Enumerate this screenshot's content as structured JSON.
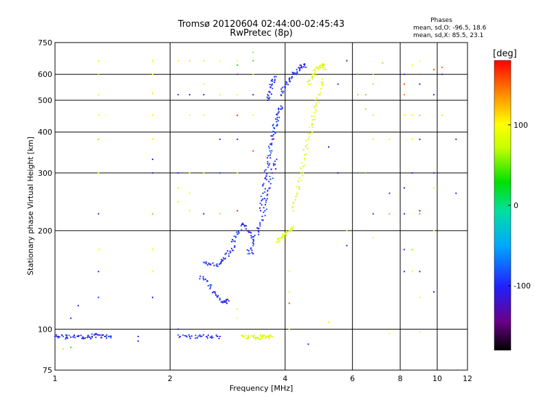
{
  "chart_data": {
    "type": "scatter",
    "title": "Tromsø 20120604 02:44:00-02:45:43",
    "subtitle": "RwPretec (8p)",
    "xlabel": "Frequency [MHz]",
    "ylabel": "Stationary phase Virtual Height [km]",
    "xscale": "log",
    "yscale": "log",
    "xlim": [
      1,
      12
    ],
    "ylim": [
      75,
      750
    ],
    "xticks": [
      1,
      2,
      4,
      6,
      8,
      10,
      12
    ],
    "yticks": [
      75,
      100,
      200,
      300,
      400,
      500,
      600,
      750
    ],
    "grid": true,
    "phases_box": {
      "title": "Phases",
      "line1": "mean, sd,O: -96.5, 18.6",
      "line2": "mean, sd,X:  85.5, 23.1"
    },
    "colorbar": {
      "label": "[deg]",
      "range": [
        -180,
        180
      ],
      "ticks": [
        100,
        0,
        -100
      ]
    },
    "series": [
      {
        "name": "O",
        "color_phase_deg": -96.5,
        "traces": [
          {
            "x": [
              1.0,
              1.05,
              1.1,
              1.15,
              1.2,
              1.25,
              1.3,
              1.35,
              1.4
            ],
            "y": [
              95,
              95,
              94.5,
              95,
              94,
              95,
              96,
              95,
              95
            ]
          },
          {
            "x": [
              2.1,
              2.25,
              2.4,
              2.55,
              2.7
            ],
            "y": [
              96,
              95,
              95,
              94.5,
              95
            ]
          },
          {
            "x": [
              2.4,
              2.5,
              2.6,
              2.7,
              2.78,
              2.85
            ],
            "y": [
              145,
              140,
              130,
              123,
              121,
              122
            ]
          },
          {
            "x": [
              2.45,
              2.55,
              2.65,
              2.75,
              2.85,
              2.95
            ],
            "y": [
              160,
              158,
              156,
              162,
              170,
              178
            ]
          },
          {
            "x": [
              2.9,
              3.0,
              3.1,
              3.2,
              3.3
            ],
            "y": [
              185,
              195,
              210,
              200,
              188
            ]
          },
          {
            "x": [
              3.2,
              3.3,
              3.4,
              3.5,
              3.55,
              3.6,
              3.7,
              3.8
            ],
            "y": [
              170,
              180,
              200,
              215,
              240,
              265,
              300,
              330
            ]
          },
          {
            "x": [
              3.45,
              3.5,
              3.55,
              3.6,
              3.65,
              3.7,
              3.75,
              3.8,
              3.85,
              3.9
            ],
            "y": [
              230,
              260,
              290,
              320,
              350,
              380,
              410,
              430,
              460,
              480
            ]
          },
          {
            "x": [
              3.6,
              3.65,
              3.7,
              3.75
            ],
            "y": [
              500,
              530,
              560,
              590
            ]
          },
          {
            "x": [
              3.9,
              4.0,
              4.1,
              4.2,
              4.3,
              4.4,
              4.5
            ],
            "y": [
              520,
              550,
              580,
              600,
              610,
              630,
              640
            ]
          }
        ]
      },
      {
        "name": "X",
        "color_phase_deg": 85.5,
        "traces": [
          {
            "x": [
              3.1,
              3.2,
              3.3,
              3.4,
              3.5,
              3.6,
              3.7
            ],
            "y": [
              95,
              94.5,
              95,
              94,
              95,
              94.5,
              95
            ]
          },
          {
            "x": [
              3.8,
              3.9,
              4.0,
              4.1,
              4.2
            ],
            "y": [
              185,
              190,
              195,
              200,
              205
            ]
          },
          {
            "x": [
              4.2,
              4.3,
              4.4,
              4.5,
              4.6,
              4.7,
              4.8,
              4.9,
              5.0
            ],
            "y": [
              230,
              260,
              300,
              340,
              380,
              420,
              470,
              520,
              580
            ]
          },
          {
            "x": [
              4.6,
              4.7,
              4.8,
              4.9,
              5.0,
              5.1
            ],
            "y": [
              560,
              590,
              610,
              630,
              640,
              620
            ]
          }
        ]
      }
    ],
    "noise_points": [
      {
        "x": 1.3,
        "y": 660,
        "c": 90
      },
      {
        "x": 1.3,
        "y": 600,
        "c": 120
      },
      {
        "x": 1.3,
        "y": 520,
        "c": 95
      },
      {
        "x": 1.3,
        "y": 450,
        "c": 100
      },
      {
        "x": 1.3,
        "y": 380,
        "c": 60
      },
      {
        "x": 1.3,
        "y": 300,
        "c": 100
      },
      {
        "x": 1.3,
        "y": 225,
        "c": -110
      },
      {
        "x": 1.3,
        "y": 175,
        "c": 95
      },
      {
        "x": 1.3,
        "y": 150,
        "c": -100
      },
      {
        "x": 1.3,
        "y": 125,
        "c": -95
      },
      {
        "x": 1.15,
        "y": 118,
        "c": -110
      },
      {
        "x": 1.1,
        "y": 108,
        "c": -120
      },
      {
        "x": 1.1,
        "y": 88,
        "c": 40
      },
      {
        "x": 1.05,
        "y": 87,
        "c": 70
      },
      {
        "x": 1.8,
        "y": 660,
        "c": 95
      },
      {
        "x": 1.8,
        "y": 600,
        "c": 100
      },
      {
        "x": 1.8,
        "y": 525,
        "c": 110
      },
      {
        "x": 1.8,
        "y": 450,
        "c": 100
      },
      {
        "x": 1.8,
        "y": 380,
        "c": 90
      },
      {
        "x": 1.8,
        "y": 330,
        "c": -110
      },
      {
        "x": 1.8,
        "y": 300,
        "c": -120
      },
      {
        "x": 1.8,
        "y": 225,
        "c": 50
      },
      {
        "x": 1.8,
        "y": 175,
        "c": 95
      },
      {
        "x": 1.8,
        "y": 150,
        "c": 100
      },
      {
        "x": 1.8,
        "y": 125,
        "c": -100
      },
      {
        "x": 1.65,
        "y": 95,
        "c": -100
      },
      {
        "x": 1.65,
        "y": 92,
        "c": -110
      },
      {
        "x": 2.1,
        "y": 660,
        "c": 95
      },
      {
        "x": 2.1,
        "y": 520,
        "c": -90
      },
      {
        "x": 2.1,
        "y": 300,
        "c": -100
      },
      {
        "x": 2.1,
        "y": 270,
        "c": 90
      },
      {
        "x": 2.1,
        "y": 245,
        "c": 80
      },
      {
        "x": 2.1,
        "y": 100,
        "c": -100
      },
      {
        "x": 2.25,
        "y": 660,
        "c": 110
      },
      {
        "x": 2.25,
        "y": 520,
        "c": -120
      },
      {
        "x": 2.25,
        "y": 450,
        "c": 95
      },
      {
        "x": 2.25,
        "y": 300,
        "c": 95
      },
      {
        "x": 2.25,
        "y": 260,
        "c": 90
      },
      {
        "x": 2.25,
        "y": 230,
        "c": 80
      },
      {
        "x": 2.45,
        "y": 660,
        "c": 80
      },
      {
        "x": 2.45,
        "y": 560,
        "c": 95
      },
      {
        "x": 2.45,
        "y": 520,
        "c": -110
      },
      {
        "x": 2.45,
        "y": 450,
        "c": 90
      },
      {
        "x": 2.45,
        "y": 300,
        "c": 110
      },
      {
        "x": 2.45,
        "y": 225,
        "c": -100
      },
      {
        "x": 2.7,
        "y": 660,
        "c": 100
      },
      {
        "x": 2.7,
        "y": 520,
        "c": 95
      },
      {
        "x": 2.7,
        "y": 380,
        "c": -100
      },
      {
        "x": 2.7,
        "y": 300,
        "c": -90
      },
      {
        "x": 2.7,
        "y": 225,
        "c": 60
      },
      {
        "x": 3.0,
        "y": 660,
        "c": 100
      },
      {
        "x": 3.0,
        "y": 640,
        "c": 20
      },
      {
        "x": 3.0,
        "y": 600,
        "c": -90
      },
      {
        "x": 3.0,
        "y": 520,
        "c": 95
      },
      {
        "x": 3.0,
        "y": 450,
        "c": 170
      },
      {
        "x": 3.0,
        "y": 380,
        "c": -100
      },
      {
        "x": 3.0,
        "y": 300,
        "c": 90
      },
      {
        "x": 3.0,
        "y": 230,
        "c": 170
      },
      {
        "x": 3.0,
        "y": 115,
        "c": 90
      },
      {
        "x": 3.0,
        "y": 108,
        "c": 95
      },
      {
        "x": 3.3,
        "y": 700,
        "c": 60
      },
      {
        "x": 3.3,
        "y": 660,
        "c": 40
      },
      {
        "x": 3.3,
        "y": 600,
        "c": 80
      },
      {
        "x": 3.3,
        "y": 520,
        "c": -120
      },
      {
        "x": 3.3,
        "y": 450,
        "c": 100
      },
      {
        "x": 3.3,
        "y": 350,
        "c": 160
      },
      {
        "x": 3.3,
        "y": 170,
        "c": -110
      },
      {
        "x": 4.1,
        "y": 150,
        "c": 95
      },
      {
        "x": 4.1,
        "y": 130,
        "c": 80
      },
      {
        "x": 4.1,
        "y": 120,
        "c": 160
      },
      {
        "x": 4.1,
        "y": 100,
        "c": 100
      },
      {
        "x": 4.6,
        "y": 90,
        "c": -110
      },
      {
        "x": 5.2,
        "y": 105,
        "c": 100
      },
      {
        "x": 5.2,
        "y": 360,
        "c": -100
      },
      {
        "x": 5.5,
        "y": 560,
        "c": -110
      },
      {
        "x": 5.5,
        "y": 300,
        "c": -120
      },
      {
        "x": 5.8,
        "y": 660,
        "c": -110
      },
      {
        "x": 5.8,
        "y": 200,
        "c": 95
      },
      {
        "x": 5.8,
        "y": 180,
        "c": -100
      },
      {
        "x": 6.2,
        "y": 520,
        "c": 60
      },
      {
        "x": 6.2,
        "y": 600,
        "c": 40
      },
      {
        "x": 6.5,
        "y": 520,
        "c": 50
      },
      {
        "x": 6.5,
        "y": 470,
        "c": 60
      },
      {
        "x": 6.5,
        "y": 300,
        "c": 40
      },
      {
        "x": 6.5,
        "y": 200,
        "c": 20
      },
      {
        "x": 6.8,
        "y": 600,
        "c": 70
      },
      {
        "x": 6.8,
        "y": 560,
        "c": 60
      },
      {
        "x": 6.8,
        "y": 450,
        "c": 70
      },
      {
        "x": 6.8,
        "y": 380,
        "c": 80
      },
      {
        "x": 6.8,
        "y": 225,
        "c": -90
      },
      {
        "x": 6.8,
        "y": 190,
        "c": 95
      },
      {
        "x": 7.2,
        "y": 650,
        "c": 120
      },
      {
        "x": 7.5,
        "y": 380,
        "c": 90
      },
      {
        "x": 7.5,
        "y": 260,
        "c": -110
      },
      {
        "x": 7.5,
        "y": 225,
        "c": 50
      },
      {
        "x": 7.5,
        "y": 97,
        "c": 100
      },
      {
        "x": 8.2,
        "y": 600,
        "c": -100
      },
      {
        "x": 8.2,
        "y": 560,
        "c": 160
      },
      {
        "x": 8.2,
        "y": 520,
        "c": 140
      },
      {
        "x": 8.2,
        "y": 450,
        "c": 100
      },
      {
        "x": 8.2,
        "y": 270,
        "c": -110
      },
      {
        "x": 8.2,
        "y": 225,
        "c": -100
      },
      {
        "x": 8.2,
        "y": 175,
        "c": -110
      },
      {
        "x": 8.2,
        "y": 150,
        "c": -100
      },
      {
        "x": 8.6,
        "y": 640,
        "c": 90
      },
      {
        "x": 8.6,
        "y": 450,
        "c": 90
      },
      {
        "x": 8.6,
        "y": 380,
        "c": 95
      },
      {
        "x": 8.6,
        "y": 300,
        "c": -100
      },
      {
        "x": 8.6,
        "y": 175,
        "c": 60
      },
      {
        "x": 8.6,
        "y": 150,
        "c": 90
      },
      {
        "x": 9.0,
        "y": 660,
        "c": 100
      },
      {
        "x": 9.0,
        "y": 600,
        "c": 160
      },
      {
        "x": 9.0,
        "y": 560,
        "c": -110
      },
      {
        "x": 9.0,
        "y": 450,
        "c": 60
      },
      {
        "x": 9.0,
        "y": 380,
        "c": -100
      },
      {
        "x": 9.0,
        "y": 230,
        "c": -110
      },
      {
        "x": 9.0,
        "y": 225,
        "c": 40
      },
      {
        "x": 9.0,
        "y": 150,
        "c": -110
      },
      {
        "x": 9.0,
        "y": 125,
        "c": 95
      },
      {
        "x": 9.0,
        "y": 98,
        "c": 100
      },
      {
        "x": 9.8,
        "y": 620,
        "c": 160
      },
      {
        "x": 9.8,
        "y": 520,
        "c": -100
      },
      {
        "x": 9.8,
        "y": 300,
        "c": -110
      },
      {
        "x": 9.8,
        "y": 270,
        "c": 90
      },
      {
        "x": 9.8,
        "y": 200,
        "c": 100
      },
      {
        "x": 9.8,
        "y": 130,
        "c": -100
      },
      {
        "x": 10.3,
        "y": 630,
        "c": 150
      },
      {
        "x": 10.3,
        "y": 600,
        "c": -110
      },
      {
        "x": 10.3,
        "y": 450,
        "c": 80
      },
      {
        "x": 11.2,
        "y": 380,
        "c": -110
      },
      {
        "x": 11.2,
        "y": 260,
        "c": -100
      }
    ]
  }
}
